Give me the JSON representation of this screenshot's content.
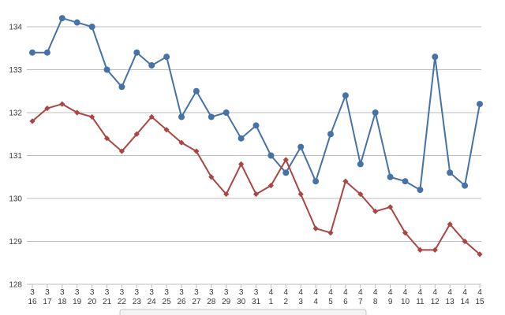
{
  "chart_data": {
    "type": "line",
    "title": "",
    "xlabel": "",
    "ylabel": "",
    "ylim": [
      128,
      134.5
    ],
    "yticks": [
      "128",
      "129",
      "130",
      "131",
      "132",
      "133",
      "134"
    ],
    "grid": true,
    "categories": [
      {
        "month": "3",
        "day": "16"
      },
      {
        "month": "3",
        "day": "17"
      },
      {
        "month": "3",
        "day": "18"
      },
      {
        "month": "3",
        "day": "19"
      },
      {
        "month": "3",
        "day": "20"
      },
      {
        "month": "3",
        "day": "21"
      },
      {
        "month": "3",
        "day": "22"
      },
      {
        "month": "3",
        "day": "23"
      },
      {
        "month": "3",
        "day": "24"
      },
      {
        "month": "3",
        "day": "25"
      },
      {
        "month": "3",
        "day": "26"
      },
      {
        "month": "3",
        "day": "27"
      },
      {
        "month": "3",
        "day": "28"
      },
      {
        "month": "3",
        "day": "29"
      },
      {
        "month": "3",
        "day": "30"
      },
      {
        "month": "3",
        "day": "31"
      },
      {
        "month": "4",
        "day": "1"
      },
      {
        "month": "4",
        "day": "2"
      },
      {
        "month": "4",
        "day": "3"
      },
      {
        "month": "4",
        "day": "4"
      },
      {
        "month": "4",
        "day": "5"
      },
      {
        "month": "4",
        "day": "6"
      },
      {
        "month": "4",
        "day": "7"
      },
      {
        "month": "4",
        "day": "8"
      },
      {
        "month": "4",
        "day": "9"
      },
      {
        "month": "4",
        "day": "10"
      },
      {
        "month": "4",
        "day": "11"
      },
      {
        "month": "4",
        "day": "12"
      },
      {
        "month": "4",
        "day": "13"
      },
      {
        "month": "4",
        "day": "14"
      },
      {
        "month": "4",
        "day": "15"
      }
    ],
    "series": [
      {
        "color": "#4572a7",
        "marker": "circle",
        "values": [
          133.4,
          133.4,
          134.2,
          134.1,
          134.0,
          133.0,
          132.6,
          133.4,
          133.1,
          133.3,
          131.9,
          132.5,
          131.9,
          132.0,
          131.4,
          131.7,
          131.0,
          130.6,
          131.2,
          130.4,
          131.5,
          132.4,
          130.8,
          132.0,
          130.5,
          130.4,
          130.2,
          133.3,
          130.6,
          130.3,
          132.2
        ]
      },
      {
        "color": "#aa4643",
        "marker": "diamond",
        "values": [
          131.8,
          132.1,
          132.2,
          132.0,
          131.9,
          131.4,
          131.1,
          131.5,
          131.9,
          131.6,
          131.3,
          131.1,
          130.5,
          130.1,
          130.8,
          130.1,
          130.3,
          130.9,
          130.1,
          129.3,
          129.2,
          130.4,
          130.1,
          129.7,
          129.8,
          129.2,
          128.8,
          128.8,
          129.4,
          129.0,
          128.7
        ]
      }
    ]
  }
}
